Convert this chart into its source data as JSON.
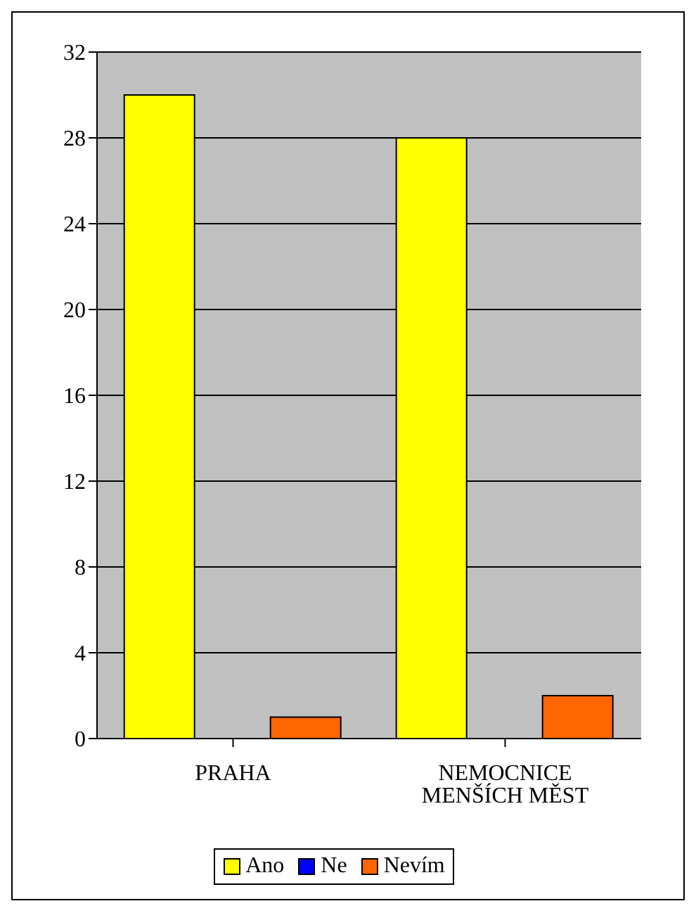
{
  "chart_data": {
    "type": "bar",
    "categories": [
      "PRAHA",
      "NEMOCNICE MENŠÍCH MĚST"
    ],
    "series": [
      {
        "name": "Ano",
        "color": "#ffff00",
        "values": [
          30,
          28
        ]
      },
      {
        "name": "Ne",
        "color": "#0000ff",
        "values": [
          0,
          0
        ]
      },
      {
        "name": "Nevím",
        "color": "#ff6600",
        "values": [
          1,
          2
        ]
      }
    ],
    "ylim": [
      0,
      32
    ],
    "yticks": [
      0,
      4,
      8,
      12,
      16,
      20,
      24,
      28,
      32
    ],
    "grid": "y",
    "legend": "bottom"
  }
}
